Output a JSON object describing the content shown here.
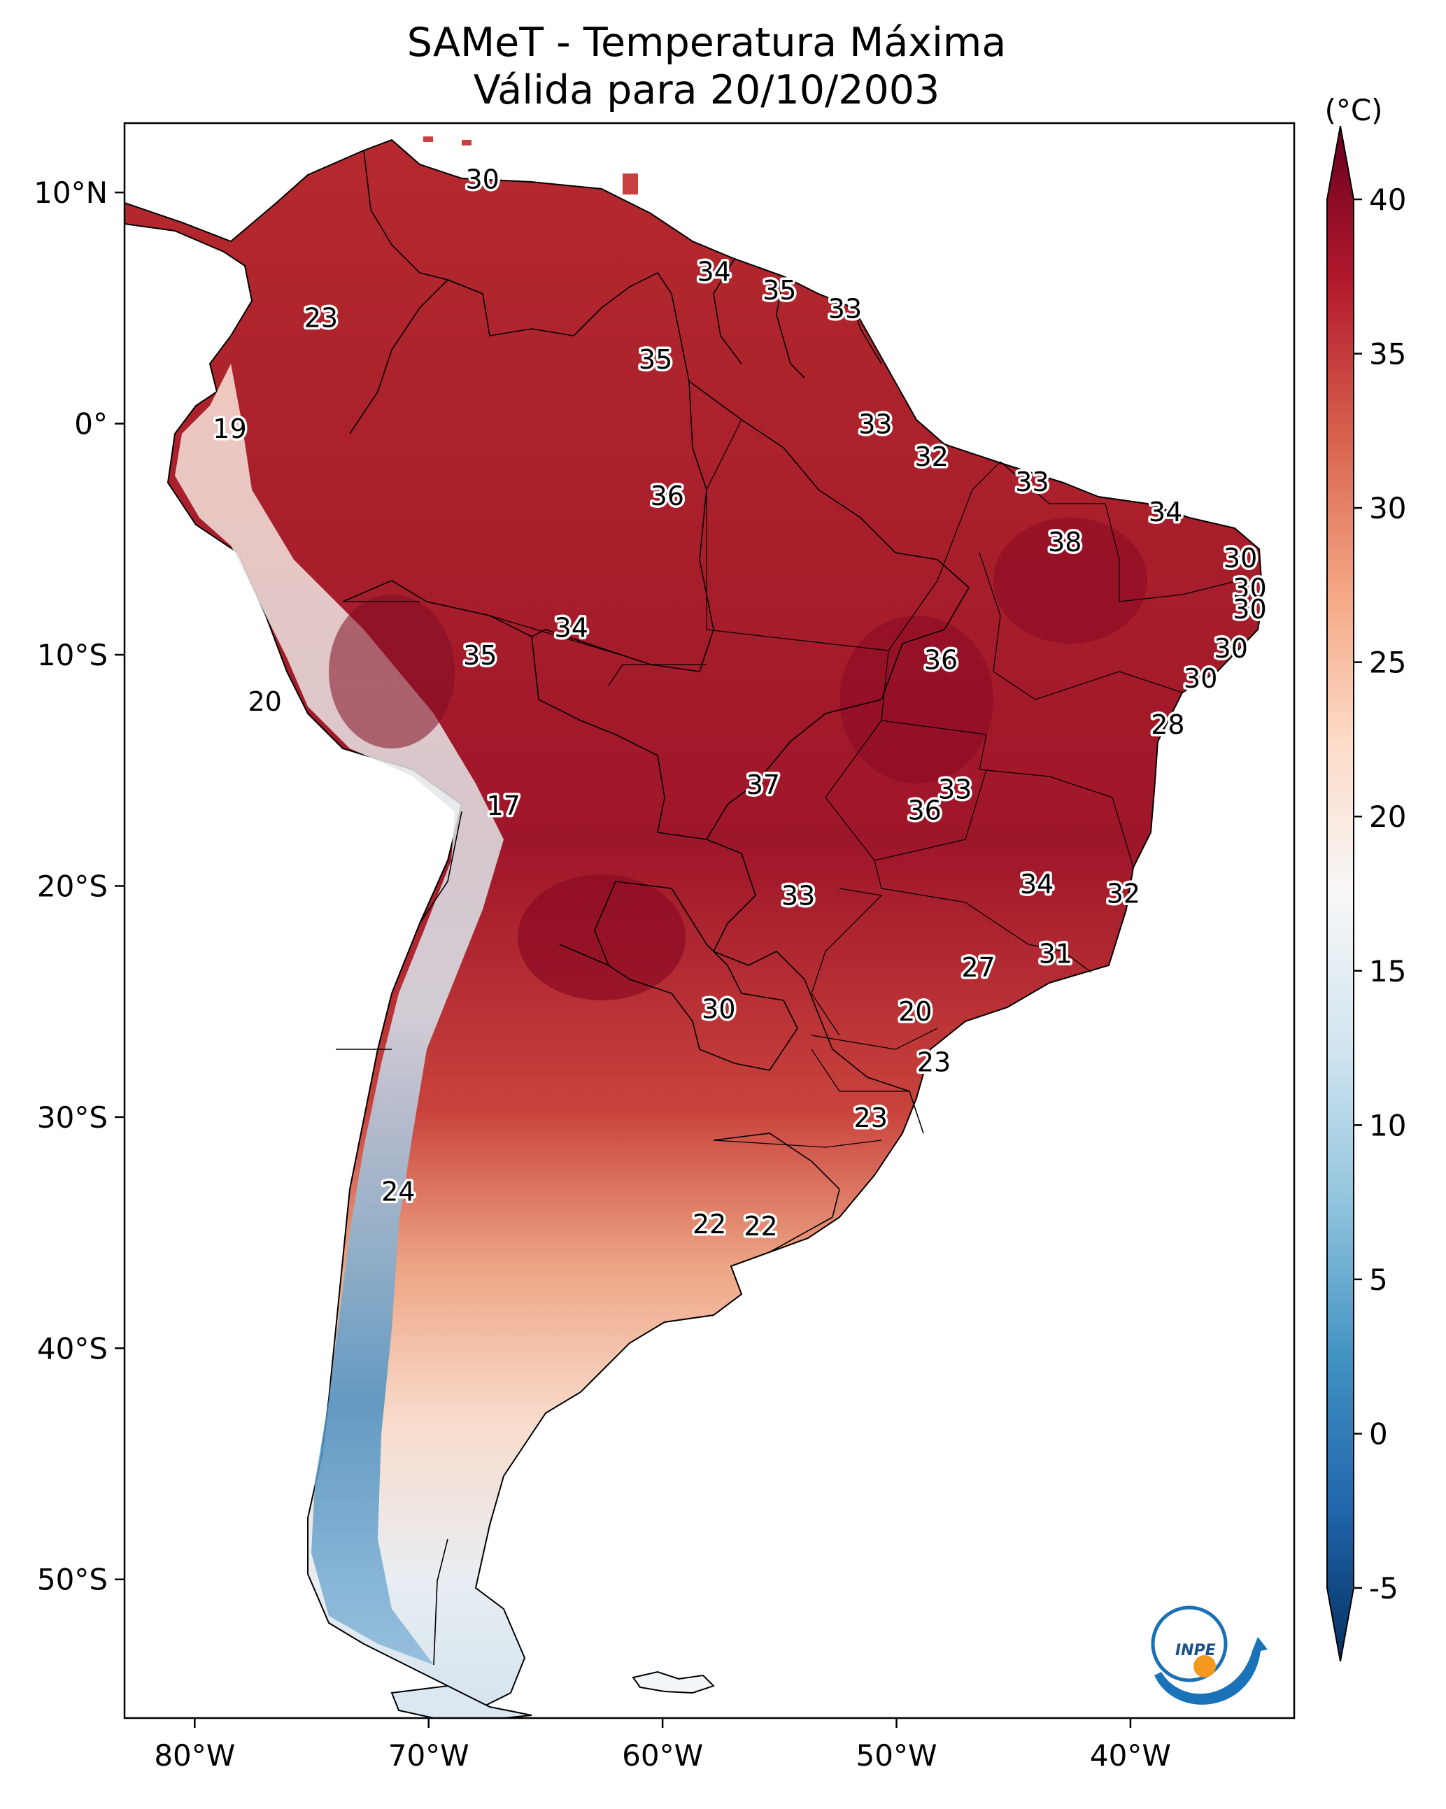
{
  "title_line1": "SAMeT - Temperatura Máxima",
  "title_line2": "Válida para 20/10/2003",
  "colorbar": {
    "unit": "(°C)",
    "min": -5,
    "max": 40,
    "ticks": [
      "40",
      "35",
      "30",
      "25",
      "20",
      "15",
      "10",
      "5",
      "0",
      "-5"
    ],
    "colors": [
      "#053061",
      "#2166ac",
      "#4393c3",
      "#92c5de",
      "#d1e5f0",
      "#f7f7f7",
      "#fddbc7",
      "#f4a582",
      "#d6604d",
      "#b2182b",
      "#67001f"
    ]
  },
  "axes": {
    "lon_labels": [
      "80°W",
      "70°W",
      "60°W",
      "50°W",
      "40°W"
    ],
    "lat_labels": [
      "10°N",
      "0°",
      "10°S",
      "20°S",
      "30°S",
      "40°S",
      "50°S"
    ]
  },
  "station_values": [
    {
      "lon": -67.7,
      "lat": 10.6,
      "text": "30"
    },
    {
      "lon": -57.8,
      "lat": 6.6,
      "text": "34"
    },
    {
      "lon": -55.0,
      "lat": 5.8,
      "text": "35"
    },
    {
      "lon": -52.2,
      "lat": 5.0,
      "text": "33"
    },
    {
      "lon": -74.6,
      "lat": 4.6,
      "text": "23"
    },
    {
      "lon": -60.3,
      "lat": 2.8,
      "text": "35"
    },
    {
      "lon": -78.5,
      "lat": -0.2,
      "text": "19"
    },
    {
      "lon": -50.9,
      "lat": 0.0,
      "text": "33"
    },
    {
      "lon": -48.5,
      "lat": -1.4,
      "text": "32"
    },
    {
      "lon": -59.8,
      "lat": -3.1,
      "text": "36"
    },
    {
      "lon": -44.2,
      "lat": -2.5,
      "text": "33"
    },
    {
      "lon": -38.5,
      "lat": -3.8,
      "text": "34"
    },
    {
      "lon": -42.8,
      "lat": -5.1,
      "text": "38"
    },
    {
      "lon": -35.3,
      "lat": -5.8,
      "text": "30"
    },
    {
      "lon": -34.9,
      "lat": -7.1,
      "text": "30"
    },
    {
      "lon": -34.9,
      "lat": -8.0,
      "text": "30"
    },
    {
      "lon": -63.9,
      "lat": -8.8,
      "text": "34"
    },
    {
      "lon": -67.8,
      "lat": -10.0,
      "text": "35"
    },
    {
      "lon": -48.1,
      "lat": -10.2,
      "text": "36"
    },
    {
      "lon": -35.7,
      "lat": -9.7,
      "text": "30"
    },
    {
      "lon": -37.0,
      "lat": -11.0,
      "text": "30"
    },
    {
      "lon": -77.0,
      "lat": -12.0,
      "text": "20"
    },
    {
      "lon": -38.4,
      "lat": -13.0,
      "text": "28"
    },
    {
      "lon": -55.7,
      "lat": -15.6,
      "text": "37"
    },
    {
      "lon": -47.5,
      "lat": -15.8,
      "text": "33"
    },
    {
      "lon": -48.8,
      "lat": -16.7,
      "text": "36"
    },
    {
      "lon": -66.8,
      "lat": -16.5,
      "text": "17"
    },
    {
      "lon": -44.0,
      "lat": -19.9,
      "text": "34"
    },
    {
      "lon": -40.3,
      "lat": -20.3,
      "text": "32"
    },
    {
      "lon": -54.2,
      "lat": -20.4,
      "text": "33"
    },
    {
      "lon": -43.2,
      "lat": -22.9,
      "text": "31"
    },
    {
      "lon": -46.5,
      "lat": -23.5,
      "text": "27"
    },
    {
      "lon": -57.6,
      "lat": -25.3,
      "text": "30"
    },
    {
      "lon": -49.2,
      "lat": -25.4,
      "text": "20"
    },
    {
      "lon": -48.4,
      "lat": -27.6,
      "text": "23"
    },
    {
      "lon": -51.1,
      "lat": -30.0,
      "text": "23"
    },
    {
      "lon": -71.3,
      "lat": -33.2,
      "text": "24"
    },
    {
      "lon": -58.0,
      "lat": -34.6,
      "text": "22"
    },
    {
      "lon": -55.8,
      "lat": -34.7,
      "text": "22"
    }
  ],
  "logo": {
    "text": "INPE"
  }
}
